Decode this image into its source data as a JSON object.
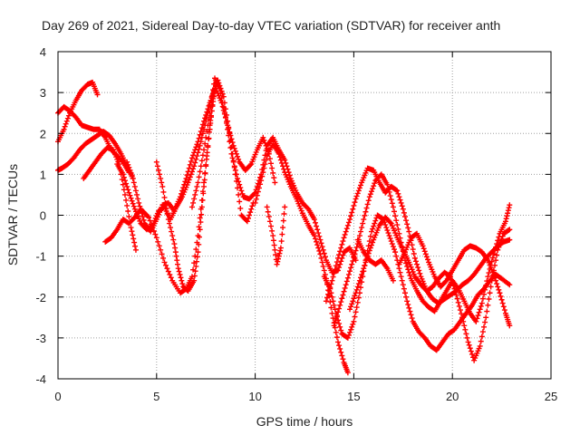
{
  "chart_data": {
    "type": "scatter",
    "title": "Day 269 of 2021, Sidereal Day-to-day VTEC variation (SDTVAR) for receiver anth",
    "xlabel": "GPS time / hours",
    "ylabel": "SDTVAR / TECUs",
    "xlim": [
      0,
      25
    ],
    "ylim": [
      -4,
      4
    ],
    "xticks": [
      0,
      5,
      10,
      15,
      20,
      25
    ],
    "yticks": [
      -4,
      -3,
      -2,
      -1,
      0,
      1,
      2,
      3,
      4
    ],
    "grid": true,
    "marker": "+",
    "marker_color": "#ff0000",
    "series": [
      {
        "x": [
          0.0,
          0.3,
          0.6,
          0.9,
          1.2,
          1.5,
          1.75,
          2.0
        ],
        "y": [
          1.8,
          2.1,
          2.5,
          2.8,
          3.05,
          3.2,
          3.25,
          2.95
        ]
      },
      {
        "x": [
          0.0,
          0.3,
          0.6,
          0.9,
          1.2,
          1.5,
          1.8,
          2.1,
          2.4,
          2.7,
          3.0,
          3.3,
          3.6
        ],
        "y": [
          2.5,
          2.65,
          2.55,
          2.4,
          2.2,
          2.15,
          2.1,
          2.1,
          1.9,
          1.6,
          1.45,
          1.3,
          1.05
        ]
      },
      {
        "x": [
          0.0,
          0.2,
          0.5,
          0.8,
          1.1,
          1.4,
          1.7,
          2.0,
          2.3,
          2.6,
          2.9,
          3.2,
          3.5,
          3.8
        ],
        "y": [
          1.1,
          1.15,
          1.25,
          1.4,
          1.6,
          1.75,
          1.85,
          1.95,
          2.05,
          1.95,
          1.75,
          1.5,
          1.2,
          0.9
        ]
      },
      {
        "x": [
          1.3,
          1.6,
          1.9,
          2.2,
          2.5,
          2.8,
          3.1,
          3.4,
          3.7,
          3.95
        ],
        "y": [
          0.9,
          1.1,
          1.3,
          1.5,
          1.65,
          1.6,
          1.25,
          0.5,
          -0.3,
          -0.85
        ]
      },
      {
        "x": [
          2.4,
          2.7,
          3.0,
          3.3,
          3.6,
          3.9,
          4.2,
          4.6,
          5.0,
          5.4,
          5.8,
          6.2,
          6.5,
          6.8,
          7.1,
          7.4,
          7.7,
          7.9,
          8.1
        ],
        "y": [
          -0.65,
          -0.55,
          -0.35,
          -0.1,
          -0.2,
          -0.05,
          0.15,
          -0.05,
          -0.55,
          -1.15,
          -1.6,
          -1.9,
          -1.8,
          -1.5,
          -0.5,
          0.8,
          2.1,
          3.0,
          3.3
        ]
      },
      {
        "x": [
          3.0,
          3.3,
          3.6,
          3.9,
          4.2,
          4.5,
          4.8,
          5.1,
          5.4,
          5.7,
          6.0,
          6.3,
          6.6,
          6.9,
          7.2,
          7.5,
          7.8,
          8.1,
          8.4,
          8.7,
          9.0,
          9.3,
          9.6,
          9.9
        ],
        "y": [
          1.25,
          1.0,
          0.55,
          0.15,
          -0.2,
          -0.35,
          -0.25,
          0.1,
          0.2,
          -0.1,
          0.2,
          0.45,
          0.8,
          1.2,
          1.7,
          2.3,
          2.9,
          3.3,
          2.9,
          2.0,
          1.0,
          0.0,
          -0.15,
          0.3
        ]
      },
      {
        "x": [
          3.5,
          3.8,
          4.1,
          4.4,
          4.7,
          5.0,
          5.3,
          5.6,
          5.9,
          6.2,
          6.5,
          6.8,
          7.1,
          7.4,
          7.7,
          8.0,
          8.3,
          8.6,
          8.9,
          9.2,
          9.5,
          9.8,
          10.1,
          10.4,
          10.7,
          11.0
        ],
        "y": [
          1.3,
          0.9,
          0.3,
          -0.2,
          -0.4,
          -0.1,
          0.25,
          0.3,
          0.1,
          0.45,
          0.9,
          1.4,
          1.8,
          2.3,
          2.75,
          3.1,
          2.75,
          2.2,
          1.7,
          1.3,
          1.1,
          1.25,
          1.6,
          1.9,
          1.5,
          0.8
        ]
      },
      {
        "x": [
          5.0,
          5.3,
          5.6,
          5.9,
          6.1,
          6.35,
          6.6,
          6.9,
          7.1,
          7.3,
          7.5,
          7.7,
          7.9
        ],
        "y": [
          1.3,
          0.7,
          -0.1,
          -0.7,
          -1.3,
          -1.75,
          -1.85,
          -1.6,
          -0.9,
          0.2,
          1.2,
          2.2,
          2.9
        ]
      },
      {
        "x": [
          6.8,
          7.1,
          7.4,
          7.7,
          7.95,
          8.2,
          8.5,
          8.8,
          9.1,
          9.4,
          9.7,
          10.0,
          10.3,
          10.6,
          10.9,
          11.2,
          11.5,
          11.8,
          12.1,
          12.4,
          12.7,
          13.0,
          13.3,
          13.6,
          13.9,
          14.2,
          14.5,
          14.8,
          15.1
        ],
        "y": [
          0.2,
          0.8,
          1.6,
          2.5,
          3.35,
          3.1,
          2.4,
          1.5,
          0.9,
          0.45,
          0.4,
          0.55,
          1.0,
          1.7,
          1.9,
          1.6,
          1.35,
          0.9,
          0.55,
          0.3,
          0.15,
          -0.1,
          -0.6,
          -1.1,
          -1.4,
          -1.35,
          -0.9,
          -0.8,
          -1.1
        ]
      },
      {
        "x": [
          10.0,
          10.3,
          10.6,
          10.9,
          11.2,
          11.5,
          11.8,
          12.1,
          12.4,
          12.7,
          13.0,
          13.3,
          13.6,
          13.9,
          14.2,
          14.5,
          14.7
        ],
        "y": [
          0.3,
          0.85,
          1.45,
          1.75,
          1.5,
          1.05,
          0.7,
          0.4,
          0.05,
          -0.25,
          -0.5,
          -0.95,
          -1.55,
          -2.4,
          -3.1,
          -3.6,
          -3.85
        ]
      },
      {
        "x": [
          10.6,
          10.9,
          11.1,
          11.3,
          11.5
        ],
        "y": [
          0.2,
          -0.5,
          -1.2,
          -0.8,
          0.2
        ]
      },
      {
        "x": [
          13.5,
          13.8,
          14.1,
          14.4,
          14.7,
          15.0,
          15.3,
          15.6,
          15.9,
          16.2,
          16.5,
          16.8,
          17.1,
          17.4,
          17.7,
          18.0,
          18.3,
          18.6,
          18.9,
          19.2,
          19.5,
          19.8,
          20.1,
          20.4,
          20.7,
          21.0,
          21.3,
          21.6,
          21.9,
          22.2,
          22.5,
          22.9
        ],
        "y": [
          -1.5,
          -1.8,
          -2.4,
          -2.9,
          -3.0,
          -2.6,
          -1.9,
          -1.1,
          -0.4,
          0.0,
          -0.1,
          -0.5,
          -0.9,
          -1.5,
          -2.1,
          -2.6,
          -2.85,
          -3.0,
          -3.2,
          -3.3,
          -3.1,
          -2.9,
          -2.8,
          -2.6,
          -2.4,
          -2.2,
          -1.95,
          -1.8,
          -1.6,
          -1.45,
          -1.55,
          -1.7
        ]
      },
      {
        "x": [
          13.6,
          13.9,
          14.2,
          14.5,
          14.8,
          15.1,
          15.4,
          15.7,
          16.0,
          16.3,
          16.6,
          16.9,
          17.2,
          17.5,
          17.8,
          18.1,
          18.4,
          18.7,
          19.0,
          19.3,
          19.6,
          19.9,
          20.2,
          20.5,
          20.8,
          21.1,
          21.4,
          21.7,
          22.0,
          22.3,
          22.6,
          22.9
        ],
        "y": [
          -2.1,
          -1.6,
          -1.05,
          -0.55,
          -0.1,
          0.4,
          0.8,
          1.15,
          1.1,
          0.8,
          0.55,
          0.7,
          0.6,
          0.15,
          -0.4,
          -1.05,
          -1.5,
          -1.85,
          -2.05,
          -2.15,
          -2.05,
          -1.95,
          -1.85,
          -1.7,
          -1.6,
          -1.45,
          -1.25,
          -1.05,
          -0.9,
          -0.75,
          -0.65,
          -0.6
        ]
      },
      {
        "x": [
          14.0,
          14.3,
          14.6,
          14.9,
          15.2,
          15.5,
          15.8,
          16.1,
          16.4,
          16.7,
          17.0,
          17.3,
          17.6,
          17.9,
          18.2,
          18.5,
          18.8,
          19.1,
          19.4,
          19.7,
          20.0,
          20.3,
          20.6,
          20.9,
          21.2,
          21.5,
          21.8,
          22.1,
          22.4,
          22.7,
          22.9
        ],
        "y": [
          -2.7,
          -2.2,
          -1.7,
          -1.2,
          -0.7,
          -0.1,
          0.45,
          0.85,
          1.0,
          0.75,
          0.2,
          -0.45,
          -1.1,
          -1.55,
          -1.85,
          -2.1,
          -2.25,
          -2.35,
          -2.1,
          -1.85,
          -1.6,
          -1.8,
          -2.1,
          -2.4,
          -2.6,
          -2.15,
          -1.5,
          -0.95,
          -0.45,
          -0.15,
          0.25
        ]
      },
      {
        "x": [
          14.8,
          15.1,
          15.4,
          15.7,
          16.0,
          16.3,
          16.6,
          16.9,
          17.2,
          17.5,
          17.8,
          18.1,
          18.4,
          18.7,
          19.0,
          19.3,
          19.6,
          19.9,
          20.2,
          20.5,
          20.8,
          21.1,
          21.4,
          21.7,
          22.0,
          22.3,
          22.6,
          22.9
        ],
        "y": [
          -2.3,
          -1.9,
          -1.45,
          -1.0,
          -0.6,
          -0.25,
          -0.05,
          -0.2,
          -0.55,
          -0.85,
          -1.15,
          -1.5,
          -1.7,
          -1.85,
          -1.75,
          -1.55,
          -1.4,
          -1.5,
          -1.95,
          -2.5,
          -3.1,
          -3.55,
          -3.2,
          -2.5,
          -1.6,
          -0.85,
          -0.45,
          -0.35
        ]
      },
      {
        "x": [
          15.2,
          15.5,
          15.8,
          16.1,
          16.4,
          16.7,
          17.0
        ],
        "y": [
          -0.6,
          -0.9,
          -1.1,
          -1.2,
          -1.1,
          -1.3,
          -1.6
        ]
      },
      {
        "x": [
          17.3,
          17.6,
          17.9,
          18.2,
          18.5,
          18.8,
          19.1,
          19.4,
          19.7,
          20.0,
          20.3,
          20.6,
          20.9,
          21.2,
          21.5,
          21.8,
          22.1,
          22.4,
          22.7,
          22.9
        ],
        "y": [
          -1.2,
          -0.9,
          -0.55,
          -0.45,
          -0.75,
          -1.15,
          -1.5,
          -1.75,
          -1.6,
          -1.35,
          -1.1,
          -0.85,
          -0.75,
          -0.8,
          -0.9,
          -1.1,
          -1.45,
          -1.9,
          -2.4,
          -2.7
        ]
      }
    ]
  }
}
